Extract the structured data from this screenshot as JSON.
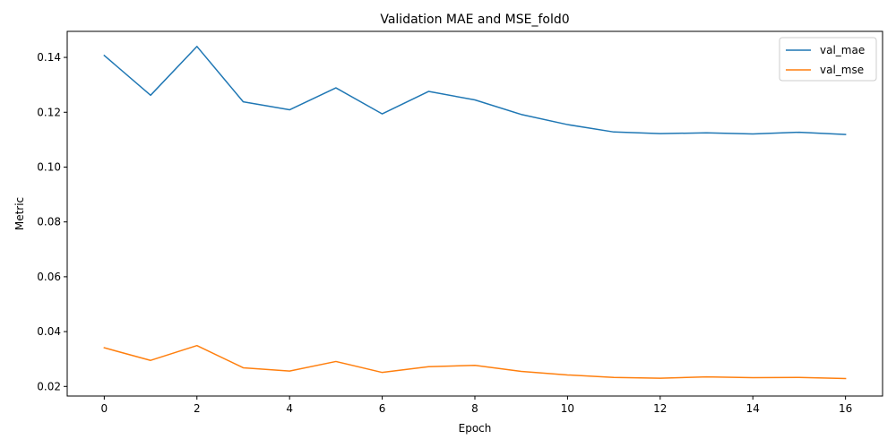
{
  "chart_data": {
    "type": "line",
    "title": "Validation MAE and MSE_fold0",
    "xlabel": "Epoch",
    "ylabel": "Metric",
    "x": [
      0,
      1,
      2,
      3,
      4,
      5,
      6,
      7,
      8,
      9,
      10,
      11,
      12,
      13,
      14,
      15,
      16
    ],
    "xlim": [
      -0.8,
      16.8
    ],
    "ylim": [
      0.0165,
      0.1495
    ],
    "xticks": [
      0,
      2,
      4,
      6,
      8,
      10,
      12,
      14,
      16
    ],
    "xtick_labels": [
      "0",
      "2",
      "4",
      "6",
      "8",
      "10",
      "12",
      "14",
      "16"
    ],
    "yticks": [
      0.02,
      0.04,
      0.06,
      0.08,
      0.1,
      0.12,
      0.14
    ],
    "ytick_labels": [
      "0.02",
      "0.04",
      "0.06",
      "0.08",
      "0.10",
      "0.12",
      "0.14"
    ],
    "grid": false,
    "legend_position": "top-right",
    "series": [
      {
        "name": "val_mae",
        "color": "#1f77b4",
        "values": [
          0.1407,
          0.1262,
          0.144,
          0.1238,
          0.1209,
          0.1289,
          0.1194,
          0.1276,
          0.1245,
          0.1192,
          0.1155,
          0.1128,
          0.1122,
          0.1125,
          0.1121,
          0.1127,
          0.1119
        ]
      },
      {
        "name": "val_mse",
        "color": "#ff7f0e",
        "values": [
          0.0341,
          0.0295,
          0.0349,
          0.0268,
          0.0256,
          0.0291,
          0.0251,
          0.0272,
          0.0277,
          0.0255,
          0.0242,
          0.0233,
          0.023,
          0.0235,
          0.0232,
          0.0233,
          0.0229
        ]
      }
    ]
  }
}
